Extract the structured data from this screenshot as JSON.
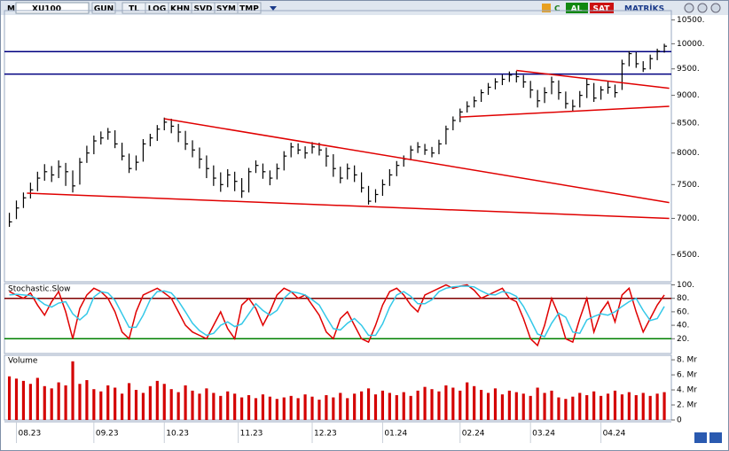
{
  "toolbar": {
    "logo": "M",
    "symbol": "XU100",
    "buttons": [
      "GUN",
      "TL",
      "LOG",
      "KHN",
      "SVD",
      "SYM",
      "TMP"
    ],
    "refresh": "C",
    "buy": "AL",
    "sell": "SAT",
    "brand": "MATRİKS"
  },
  "chart_data": [
    {
      "type": "ohlc",
      "color": "#000000",
      "log_scale": true,
      "ylim": [
        6150,
        10700
      ],
      "yticks": [
        {
          "value": 6500,
          "label": "6500."
        },
        {
          "value": 7000,
          "label": "7000."
        },
        {
          "value": 7500,
          "label": "7500."
        },
        {
          "value": 8000,
          "label": "8000."
        },
        {
          "value": 8500,
          "label": "8500."
        },
        {
          "value": 9000,
          "label": "9000."
        },
        {
          "value": 9500,
          "label": "9500."
        },
        {
          "value": 10000,
          "label": "10000."
        },
        {
          "value": 10500,
          "label": "10500."
        }
      ],
      "close": [
        6950,
        7150,
        7300,
        7420,
        7600,
        7700,
        7650,
        7780,
        7700,
        7480,
        7850,
        8000,
        8200,
        8250,
        8350,
        8150,
        7950,
        7750,
        7850,
        8150,
        8250,
        8400,
        8520,
        8450,
        8350,
        8150,
        8050,
        7900,
        7750,
        7600,
        7500,
        7650,
        7550,
        7400,
        7700,
        7800,
        7700,
        7600,
        7750,
        7950,
        8100,
        8050,
        8000,
        8100,
        8050,
        7950,
        7750,
        7600,
        7750,
        7650,
        7450,
        7250,
        7350,
        7500,
        7650,
        7800,
        7900,
        8050,
        8100,
        8050,
        8000,
        8150,
        8400,
        8550,
        8700,
        8800,
        8900,
        9050,
        9150,
        9250,
        9300,
        9380,
        9350,
        9250,
        9100,
        8900,
        9050,
        9250,
        9050,
        8850,
        8800,
        9000,
        9200,
        8950,
        9100,
        9150,
        9050,
        9600,
        9800,
        9600,
        9500,
        9700,
        9850,
        9950
      ],
      "high": [
        7080,
        7260,
        7380,
        7530,
        7700,
        7820,
        7790,
        7880,
        7840,
        7720,
        7920,
        8120,
        8290,
        8360,
        8420,
        8380,
        8170,
        7990,
        7960,
        8230,
        8320,
        8470,
        8600,
        8580,
        8490,
        8370,
        8210,
        8090,
        7960,
        7800,
        7690,
        7740,
        7700,
        7600,
        7760,
        7880,
        7830,
        7720,
        7830,
        8030,
        8170,
        8160,
        8110,
        8180,
        8170,
        8090,
        7980,
        7780,
        7830,
        7800,
        7690,
        7480,
        7430,
        7580,
        7740,
        7870,
        7960,
        8120,
        8180,
        8150,
        8100,
        8220,
        8460,
        8620,
        8760,
        8890,
        8980,
        9110,
        9230,
        9320,
        9390,
        9450,
        9460,
        9380,
        9270,
        9100,
        9150,
        9350,
        9280,
        9070,
        8920,
        9080,
        9300,
        9230,
        9170,
        9260,
        9200,
        9680,
        9850,
        9830,
        9650,
        9780,
        9900,
        10000
      ],
      "low": [
        6880,
        6990,
        7150,
        7290,
        7400,
        7560,
        7540,
        7600,
        7480,
        7380,
        7500,
        7840,
        7980,
        8140,
        8220,
        8080,
        7880,
        7680,
        7720,
        7860,
        8110,
        8200,
        8380,
        8330,
        8180,
        8050,
        7930,
        7750,
        7600,
        7480,
        7390,
        7460,
        7400,
        7300,
        7380,
        7680,
        7590,
        7490,
        7580,
        7720,
        7930,
        7980,
        7910,
        7990,
        7960,
        7780,
        7620,
        7520,
        7580,
        7540,
        7380,
        7200,
        7230,
        7330,
        7480,
        7630,
        7780,
        7880,
        8000,
        7970,
        7930,
        7980,
        8140,
        8380,
        8520,
        8690,
        8780,
        8880,
        9010,
        9110,
        9190,
        9250,
        9240,
        9140,
        8950,
        8780,
        8860,
        9020,
        8920,
        8760,
        8720,
        8780,
        8950,
        8880,
        8920,
        9030,
        8960,
        9100,
        9550,
        9520,
        9440,
        9490,
        9670,
        9820
      ],
      "hlines": [
        {
          "value": 9840,
          "color": "#000080"
        },
        {
          "value": 9400,
          "color": "#000080"
        }
      ],
      "lines": [
        {
          "color": "#e00000",
          "x": [
            2.5,
            93.7
          ],
          "y": [
            7370,
            7000
          ]
        },
        {
          "color": "#e00000",
          "x": [
            22,
            93.7
          ],
          "y": [
            8580,
            7230
          ]
        },
        {
          "color": "#e00000",
          "x": [
            72,
            93.7
          ],
          "y": [
            9470,
            9130
          ]
        },
        {
          "color": "#e00000",
          "x": [
            64,
            93.7
          ],
          "y": [
            8610,
            8800
          ]
        }
      ]
    },
    {
      "type": "line",
      "title": "Stochastic.Slow",
      "ylim": [
        -2,
        102
      ],
      "yticks": [
        {
          "value": 20,
          "label": "20."
        },
        {
          "value": 40,
          "label": "40."
        },
        {
          "value": 60,
          "label": "60."
        },
        {
          "value": 80,
          "label": "80."
        },
        {
          "value": 100,
          "label": "100."
        }
      ],
      "hlines": [
        {
          "value": 80,
          "color": "#800000"
        },
        {
          "value": 20,
          "color": "#008000"
        }
      ],
      "series": [
        {
          "color": "#e00000",
          "values": [
            90,
            85,
            80,
            88,
            70,
            55,
            75,
            90,
            60,
            20,
            65,
            85,
            95,
            90,
            80,
            60,
            30,
            20,
            60,
            85,
            90,
            95,
            88,
            80,
            60,
            40,
            30,
            25,
            20,
            40,
            60,
            35,
            20,
            70,
            80,
            65,
            40,
            60,
            85,
            95,
            90,
            80,
            85,
            70,
            55,
            30,
            20,
            50,
            60,
            40,
            20,
            15,
            40,
            70,
            90,
            95,
            85,
            70,
            60,
            85,
            90,
            95,
            100,
            95,
            98,
            100,
            92,
            80,
            85,
            90,
            95,
            80,
            75,
            50,
            20,
            10,
            40,
            80,
            55,
            20,
            15,
            50,
            80,
            30,
            60,
            75,
            45,
            85,
            95,
            60,
            30,
            50,
            70,
            85
          ]
        },
        {
          "color": "#33c8e8",
          "values": [
            85,
            86,
            85,
            84,
            79,
            71,
            67,
            73,
            75,
            57,
            48,
            57,
            82,
            90,
            88,
            77,
            57,
            37,
            37,
            55,
            78,
            90,
            91,
            88,
            76,
            60,
            43,
            32,
            25,
            28,
            40,
            45,
            38,
            42,
            57,
            72,
            62,
            55,
            62,
            80,
            90,
            88,
            85,
            78,
            70,
            52,
            35,
            33,
            43,
            50,
            40,
            25,
            25,
            42,
            67,
            85,
            90,
            83,
            72,
            72,
            78,
            90,
            95,
            97,
            98,
            98,
            97,
            91,
            86,
            85,
            90,
            88,
            83,
            68,
            48,
            27,
            23,
            43,
            58,
            52,
            30,
            28,
            48,
            53,
            57,
            55,
            60,
            68,
            75,
            80,
            62,
            47,
            50,
            68
          ]
        }
      ]
    },
    {
      "type": "bar",
      "title": "Volume",
      "color": "#d40000",
      "ylim": [
        0,
        8.6
      ],
      "yticks": [
        0,
        {
          "value": 2,
          "label": "2. Mr"
        },
        {
          "value": 4,
          "label": "4. Mr"
        },
        {
          "value": 6,
          "label": "6. Mr"
        },
        {
          "value": 8,
          "label": "8. Mr"
        }
      ],
      "values": [
        5.8,
        5.5,
        5.2,
        4.8,
        5.6,
        4.5,
        4.2,
        5.0,
        4.6,
        7.8,
        4.8,
        5.3,
        4.1,
        3.8,
        4.6,
        4.3,
        3.5,
        4.9,
        4.0,
        3.6,
        4.5,
        5.2,
        4.8,
        4.1,
        3.7,
        4.6,
        3.9,
        3.5,
        4.2,
        3.6,
        3.2,
        3.8,
        3.5,
        3.0,
        3.3,
        2.9,
        3.4,
        3.1,
        2.8,
        3.0,
        3.2,
        2.9,
        3.4,
        3.1,
        2.7,
        3.3,
        3.0,
        3.6,
        2.9,
        3.5,
        3.8,
        4.2,
        3.4,
        3.9,
        3.6,
        3.3,
        3.7,
        3.2,
        3.9,
        4.4,
        4.1,
        3.8,
        4.6,
        4.3,
        3.9,
        5.0,
        4.5,
        4.0,
        3.6,
        4.2,
        3.4,
        3.9,
        3.7,
        3.5,
        3.2,
        4.3,
        3.6,
        3.9,
        3.0,
        2.8,
        3.1,
        3.6,
        3.3,
        3.8,
        3.2,
        3.5,
        3.9,
        3.4,
        3.7,
        3.3,
        3.6,
        3.2,
        3.5,
        3.7
      ],
      "xlim": [
        -0.7,
        94
      ],
      "xticks": [
        {
          "value": 1,
          "label": "08.23"
        },
        {
          "value": 12,
          "label": "09.23"
        },
        {
          "value": 22,
          "label": "10.23"
        },
        {
          "value": 32.5,
          "label": "11.23"
        },
        {
          "value": 43,
          "label": "12.23"
        },
        {
          "value": 53,
          "label": "01.24"
        },
        {
          "value": 64,
          "label": "02.24"
        },
        {
          "value": 74,
          "label": "03.24"
        },
        {
          "value": 84,
          "label": "04.24"
        }
      ]
    }
  ]
}
